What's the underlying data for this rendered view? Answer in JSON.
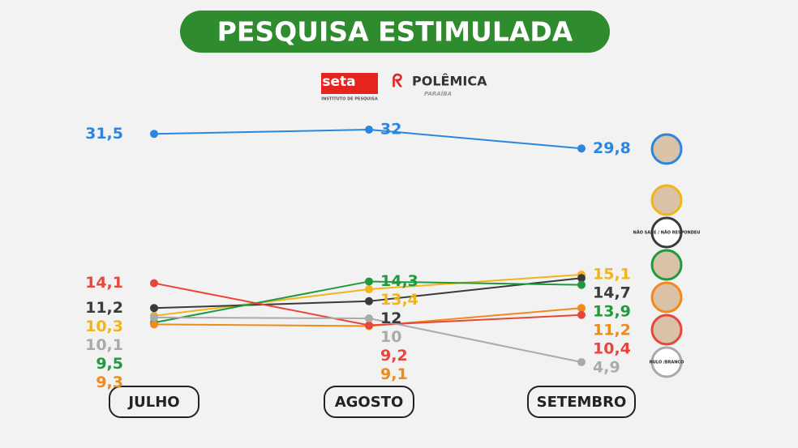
{
  "chart_data": {
    "type": "line",
    "title": "PESQUISA ESTIMULADA",
    "logos": [
      "seta",
      "INSTITUTO DE PESQUISA",
      "POLÊMICA",
      "PARAÍBA"
    ],
    "categories": [
      "JULHO",
      "AGOSTO",
      "SETEMBRO"
    ],
    "series": [
      {
        "color": "#2a86e0",
        "values": [
          31.5,
          32,
          29.8
        ],
        "value_labels": [
          "31,5",
          "32",
          "29,8"
        ]
      },
      {
        "color": "#f2b418",
        "values": [
          10.3,
          13.4,
          15.1
        ],
        "value_labels": [
          "10,3",
          "13,4",
          "15,1"
        ]
      },
      {
        "name": "NÃO SABE / NÃO RESPONDEU",
        "color": "#3a3a3a",
        "values": [
          11.2,
          12,
          14.7
        ],
        "value_labels": [
          "11,2",
          "12",
          "14,7"
        ]
      },
      {
        "color": "#1f9a3c",
        "values": [
          9.5,
          14.3,
          13.9
        ],
        "value_labels": [
          "9,5",
          "14,3",
          "13,9"
        ]
      },
      {
        "color": "#f08a1a",
        "values": [
          9.3,
          9.1,
          11.2
        ],
        "value_labels": [
          "9,3",
          "9,1",
          "11,2"
        ]
      },
      {
        "color": "#e8463a",
        "values": [
          14.1,
          9.2,
          10.4
        ],
        "value_labels": [
          "14,1",
          "9,2",
          "10,4"
        ]
      },
      {
        "name": "NULO /BRANCO",
        "color": "#aaaaaa",
        "values": [
          10.1,
          10,
          4.9
        ],
        "value_labels": [
          "10,1",
          "10",
          "4,9"
        ]
      }
    ]
  }
}
